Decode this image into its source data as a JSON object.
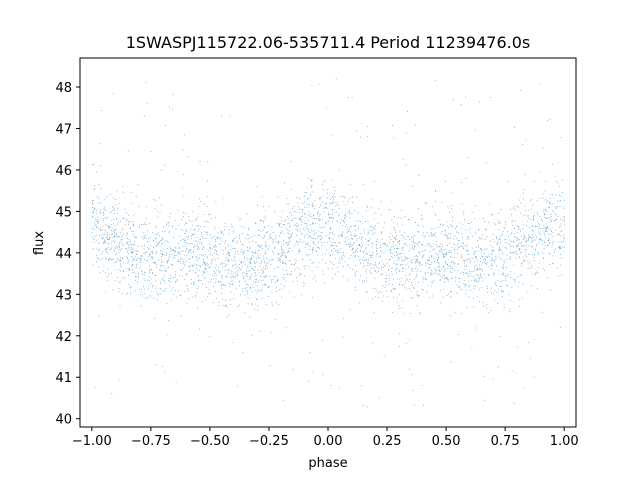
{
  "chart_data": {
    "type": "scatter",
    "title": "1SWASPJ115722.06-535711.4 Period 11239476.0s",
    "xlabel": "phase",
    "ylabel": "flux",
    "xlim": [
      -1.05,
      1.05
    ],
    "ylim": [
      39.8,
      48.7
    ],
    "x_ticks": [
      -1.0,
      -0.75,
      -0.5,
      -0.25,
      0.0,
      0.25,
      0.5,
      0.75,
      1.0
    ],
    "x_tick_labels": [
      "−1.00",
      "−0.75",
      "−0.50",
      "−0.25",
      "0.00",
      "0.25",
      "0.50",
      "0.75",
      "1.00"
    ],
    "y_ticks": [
      40,
      41,
      42,
      43,
      44,
      45,
      46,
      47,
      48
    ],
    "y_tick_labels": [
      "40",
      "41",
      "42",
      "43",
      "44",
      "45",
      "46",
      "47",
      "48"
    ],
    "grid": false,
    "marker_color": "#1f77b4",
    "series": [
      {
        "x_range": [
          -1.0,
          1.0
        ],
        "mean_flux": 44.1,
        "core_range": [
          42.8,
          45.6
        ],
        "outlier_range": [
          40.2,
          48.3
        ],
        "approx_points": 22000
      }
    ]
  }
}
